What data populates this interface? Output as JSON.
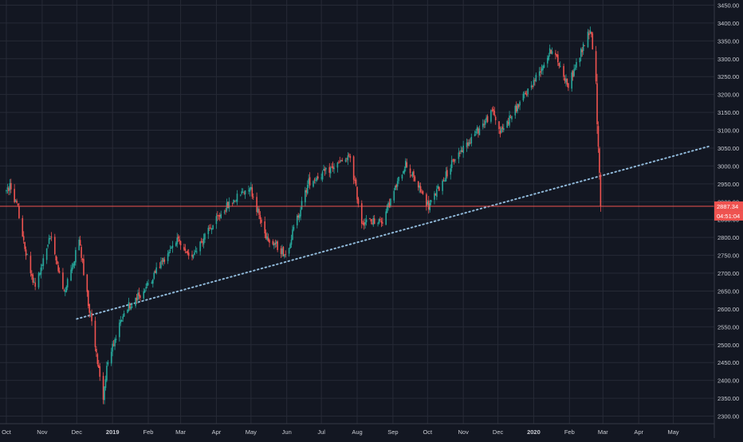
{
  "colors": {
    "background": "#131722",
    "grid": "#262a36",
    "axis_text": "#c9ccd3",
    "up": "#26a69a",
    "down": "#ef5350",
    "price_line": "#ef5350",
    "trendline": "#8fb8d8",
    "price_badge_bg": "#ef5350",
    "price_badge_text": "#ffffff"
  },
  "price_axis": {
    "ticks": [
      "2300.00",
      "2350.00",
      "2400.00",
      "2450.00",
      "2500.00",
      "2550.00",
      "2600.00",
      "2650.00",
      "2700.00",
      "2750.00",
      "2800.00",
      "2850.00",
      "2900.00",
      "2950.00",
      "3000.00",
      "3050.00",
      "3100.00",
      "3150.00",
      "3200.00",
      "3250.00",
      "3300.00",
      "3350.00",
      "3400.00",
      "3450.00"
    ],
    "current_price": "2887.34",
    "countdown": "04:51:04"
  },
  "time_axis": {
    "labels": [
      "Oct",
      "Nov",
      "Dec",
      "2019",
      "Feb",
      "Mar",
      "Apr",
      "May",
      "Jun",
      "Jul",
      "Aug",
      "Sep",
      "Oct",
      "Nov",
      "Dec",
      "2020",
      "Feb",
      "Mar",
      "Apr",
      "May"
    ]
  },
  "chart_data": {
    "type": "candlestick",
    "title": "",
    "xlabel": "",
    "ylabel": "",
    "ylim": [
      2290,
      3460
    ],
    "y_scale": "linear",
    "grid": true,
    "x_range": [
      "2018-10-01",
      "2020-05-31"
    ],
    "current_price": 2887.34,
    "price_line_value": 2887.34,
    "trendline": {
      "style": "dotted",
      "points": [
        {
          "date": "2018-12-01",
          "value": 2572
        },
        {
          "date": "2020-06-01",
          "value": 3055
        }
      ]
    },
    "anchors": [
      {
        "date": "2018-10-01",
        "value": 2930
      },
      {
        "date": "2018-10-04",
        "value": 2940
      },
      {
        "date": "2018-10-11",
        "value": 2880
      },
      {
        "date": "2018-10-18",
        "value": 2760
      },
      {
        "date": "2018-10-26",
        "value": 2660
      },
      {
        "date": "2018-10-31",
        "value": 2710
      },
      {
        "date": "2018-11-08",
        "value": 2810
      },
      {
        "date": "2018-11-20",
        "value": 2640
      },
      {
        "date": "2018-12-03",
        "value": 2790
      },
      {
        "date": "2018-12-10",
        "value": 2640
      },
      {
        "date": "2018-12-24",
        "value": 2351
      },
      {
        "date": "2018-12-27",
        "value": 2440
      },
      {
        "date": "2019-01-10",
        "value": 2590
      },
      {
        "date": "2019-01-28",
        "value": 2650
      },
      {
        "date": "2019-02-25",
        "value": 2795
      },
      {
        "date": "2019-03-08",
        "value": 2740
      },
      {
        "date": "2019-04-08",
        "value": 2880
      },
      {
        "date": "2019-04-30",
        "value": 2945
      },
      {
        "date": "2019-05-13",
        "value": 2810
      },
      {
        "date": "2019-05-31",
        "value": 2752
      },
      {
        "date": "2019-06-20",
        "value": 2955
      },
      {
        "date": "2019-07-26",
        "value": 3025
      },
      {
        "date": "2019-08-05",
        "value": 2844
      },
      {
        "date": "2019-08-23",
        "value": 2847
      },
      {
        "date": "2019-09-12",
        "value": 3009
      },
      {
        "date": "2019-10-02",
        "value": 2887
      },
      {
        "date": "2019-10-25",
        "value": 3023
      },
      {
        "date": "2019-11-27",
        "value": 3153
      },
      {
        "date": "2019-12-03",
        "value": 3093
      },
      {
        "date": "2019-12-31",
        "value": 3231
      },
      {
        "date": "2020-01-17",
        "value": 3330
      },
      {
        "date": "2020-01-31",
        "value": 3225
      },
      {
        "date": "2020-02-19",
        "value": 3386
      },
      {
        "date": "2020-02-21",
        "value": 3338
      },
      {
        "date": "2020-02-24",
        "value": 3226
      },
      {
        "date": "2020-02-25",
        "value": 3128
      },
      {
        "date": "2020-02-27",
        "value": 2979
      },
      {
        "date": "2020-02-28",
        "value": 2887
      }
    ]
  }
}
